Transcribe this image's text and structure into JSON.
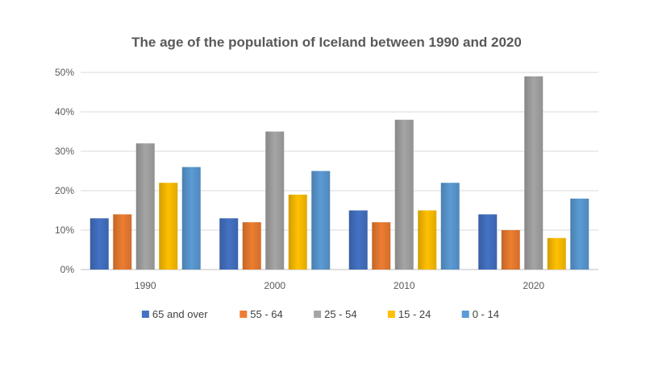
{
  "chart_data": {
    "type": "bar",
    "title": "The age of the population of Iceland between 1990 and 2020",
    "xlabel": "",
    "ylabel": "",
    "categories": [
      "1990",
      "2000",
      "2010",
      "2020"
    ],
    "ylim": [
      0,
      50
    ],
    "yticks": [
      0,
      10,
      20,
      30,
      40,
      50
    ],
    "ytick_format": "{v}%",
    "grid": true,
    "legend_position": "bottom",
    "series": [
      {
        "name": "65 and over",
        "color": "#4472C4",
        "values": [
          13,
          13,
          15,
          14
        ]
      },
      {
        "name": "55 - 64",
        "color": "#ED7D31",
        "values": [
          14,
          12,
          12,
          10
        ]
      },
      {
        "name": "25 - 54",
        "color": "#A5A5A5",
        "values": [
          32,
          35,
          38,
          49
        ]
      },
      {
        "name": "15 - 24",
        "color": "#FFC000",
        "values": [
          22,
          19,
          15,
          8
        ]
      },
      {
        "name": "0 - 14",
        "color": "#5B9BD5",
        "values": [
          26,
          25,
          22,
          18
        ]
      }
    ]
  }
}
